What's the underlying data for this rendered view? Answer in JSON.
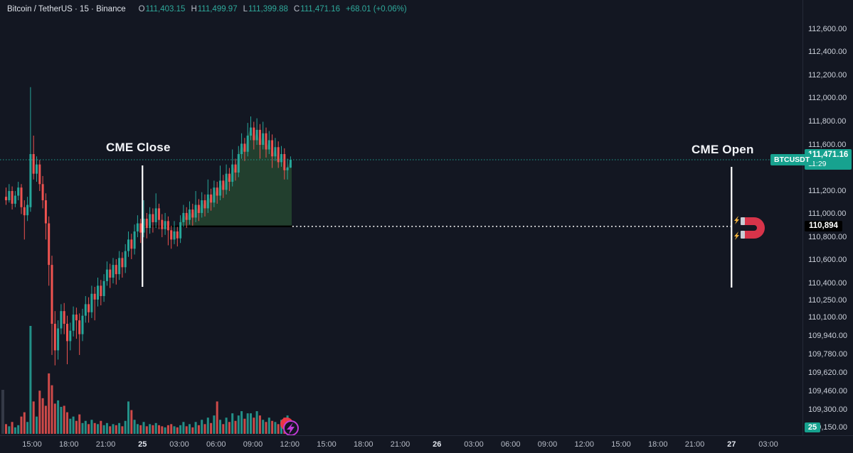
{
  "header": {
    "title": "Bitcoin / TetherUS · 15 · Binance",
    "ohlc_items": [
      {
        "label": "O",
        "value": "111,403.15"
      },
      {
        "label": "H",
        "value": "111,499.97"
      },
      {
        "label": "L",
        "value": "111,399.88"
      },
      {
        "label": "C",
        "value": "111,471.16"
      }
    ],
    "change": "+68.01 (+0.06%)",
    "currency_button": "USDT"
  },
  "annotations": {
    "cme_close": "CME Close",
    "cme_open": "CME Open"
  },
  "badges": {
    "symbol": "BTCUSDT",
    "last_price": "111,471.16",
    "countdown": "11:29",
    "magnet_price": "110,894",
    "overlap": "25"
  },
  "colors": {
    "background": "#131722",
    "up": "#26a69a",
    "down": "#ef5350",
    "accent_teal": "#17a28f",
    "price_line": "#1fa090",
    "magnet_dotted_line": "#ffffff",
    "level_line": "#000000",
    "green_fill": "rgba(76,175,80,0.27)",
    "axis_text": "#ccd1db",
    "marker_purple": "#c13ad6",
    "marker_red": "#f23645",
    "magnet_red": "#d7344a",
    "spark_yellow": "#f5b53f"
  },
  "price_axis": {
    "labels": [
      {
        "text": "112,600.00",
        "value": 112600
      },
      {
        "text": "112,400.00",
        "value": 112400
      },
      {
        "text": "112,200.00",
        "value": 112200
      },
      {
        "text": "112,000.00",
        "value": 112000
      },
      {
        "text": "111,800.00",
        "value": 111800
      },
      {
        "text": "111,600.00",
        "value": 111600
      },
      {
        "text": "111,200.00",
        "value": 111200
      },
      {
        "text": "111,000.00",
        "value": 111000
      },
      {
        "text": "110,800.00",
        "value": 110800
      },
      {
        "text": "110,600.00",
        "value": 110600
      },
      {
        "text": "110,400.00",
        "value": 110400
      },
      {
        "text": "110,250.00",
        "value": 110250
      },
      {
        "text": "110,100.00",
        "value": 110100
      },
      {
        "text": "109,940.00",
        "value": 109940
      },
      {
        "text": "109,780.00",
        "value": 109780
      },
      {
        "text": "109,620.00",
        "value": 109620
      },
      {
        "text": "109,460.00",
        "value": 109460
      },
      {
        "text": "109,300.00",
        "value": 109300
      },
      {
        "text": "109,150.00",
        "value": 109150
      }
    ]
  },
  "time_axis": {
    "labels": [
      {
        "text": "15:00",
        "day": false
      },
      {
        "text": "18:00",
        "day": false
      },
      {
        "text": "21:00",
        "day": false
      },
      {
        "text": "25",
        "day": true
      },
      {
        "text": "03:00",
        "day": false
      },
      {
        "text": "06:00",
        "day": false
      },
      {
        "text": "09:00",
        "day": false
      },
      {
        "text": "12:00",
        "day": false
      },
      {
        "text": "15:00",
        "day": false
      },
      {
        "text": "18:00",
        "day": false
      },
      {
        "text": "21:00",
        "day": false
      },
      {
        "text": "26",
        "day": true
      },
      {
        "text": "03:00",
        "day": false
      },
      {
        "text": "06:00",
        "day": false
      },
      {
        "text": "09:00",
        "day": false
      },
      {
        "text": "12:00",
        "day": false
      },
      {
        "text": "15:00",
        "day": false
      },
      {
        "text": "18:00",
        "day": false
      },
      {
        "text": "21:00",
        "day": false
      },
      {
        "text": "27",
        "day": true
      },
      {
        "text": "03:00",
        "day": false
      }
    ]
  },
  "chart_data": {
    "type": "candlestick",
    "symbol": "BTCUSDT",
    "exchange": "Binance",
    "interval_minutes": 15,
    "last_price": 111471.16,
    "last_change": 68.01,
    "last_change_pct": 0.06,
    "magnet_level": 110894,
    "countdown": "11:29",
    "fill_from_index": 57,
    "cme_close_tick_index": 3,
    "cme_open_tick_index": 19,
    "candles_ohlc": [
      [
        111150,
        111230,
        111080,
        111120
      ],
      [
        111120,
        111260,
        111100,
        111200
      ],
      [
        111200,
        111240,
        111040,
        111090
      ],
      [
        111090,
        111200,
        111060,
        111160
      ],
      [
        111160,
        111280,
        111120,
        111230
      ],
      [
        111230,
        111260,
        111000,
        111060
      ],
      [
        111060,
        111120,
        110780,
        110990
      ],
      [
        110990,
        111150,
        110940,
        111080
      ],
      [
        111060,
        112100,
        111020,
        111520
      ],
      [
        111520,
        111680,
        111300,
        111350
      ],
      [
        111350,
        111500,
        111280,
        111430
      ],
      [
        111430,
        111470,
        111200,
        111260
      ],
      [
        111260,
        111330,
        111050,
        111120
      ],
      [
        111120,
        111180,
        110780,
        110920
      ],
      [
        110920,
        110980,
        110380,
        110560
      ],
      [
        110560,
        110640,
        109780,
        110050
      ],
      [
        110050,
        110160,
        109690,
        109820
      ],
      [
        109820,
        110080,
        109740,
        110010
      ],
      [
        110010,
        110220,
        109960,
        110160
      ],
      [
        110160,
        110230,
        109960,
        110050
      ],
      [
        110050,
        110120,
        109700,
        109900
      ],
      [
        109900,
        110060,
        109820,
        109990
      ],
      [
        109990,
        110200,
        109940,
        110130
      ],
      [
        110130,
        110190,
        109920,
        110080
      ],
      [
        110080,
        110140,
        109780,
        109960
      ],
      [
        109960,
        110180,
        109900,
        110120
      ],
      [
        110120,
        110290,
        110060,
        110220
      ],
      [
        110220,
        110280,
        110060,
        110150
      ],
      [
        110150,
        110380,
        110100,
        110310
      ],
      [
        110310,
        110370,
        110080,
        110260
      ],
      [
        110260,
        110450,
        110200,
        110380
      ],
      [
        110380,
        110430,
        110210,
        110290
      ],
      [
        110290,
        110480,
        110240,
        110420
      ],
      [
        110420,
        110590,
        110380,
        110520
      ],
      [
        110520,
        110570,
        110360,
        110450
      ],
      [
        110450,
        110620,
        110400,
        110560
      ],
      [
        110560,
        110610,
        110390,
        110480
      ],
      [
        110480,
        110680,
        110430,
        110620
      ],
      [
        110620,
        110670,
        110450,
        110540
      ],
      [
        110540,
        110740,
        110490,
        110680
      ],
      [
        110680,
        110850,
        110630,
        110780
      ],
      [
        110780,
        110830,
        110610,
        110700
      ],
      [
        110700,
        110910,
        110650,
        110850
      ],
      [
        110850,
        110990,
        110800,
        110920
      ],
      [
        110920,
        110960,
        110750,
        110840
      ],
      [
        110840,
        111120,
        110800,
        110960
      ],
      [
        110960,
        111010,
        110790,
        110880
      ],
      [
        110880,
        111060,
        110830,
        111000
      ],
      [
        111000,
        111050,
        110840,
        110930
      ],
      [
        110930,
        111180,
        110880,
        111050
      ],
      [
        111050,
        111090,
        110870,
        110950
      ],
      [
        110950,
        111000,
        110800,
        110870
      ],
      [
        110870,
        111010,
        110820,
        110940
      ],
      [
        110940,
        110980,
        110730,
        110860
      ],
      [
        110860,
        110900,
        110700,
        110780
      ],
      [
        110780,
        110940,
        110740,
        110850
      ],
      [
        110850,
        110890,
        110720,
        110790
      ],
      [
        110790,
        110990,
        110750,
        110930
      ],
      [
        110930,
        111080,
        110890,
        111010
      ],
      [
        111010,
        111060,
        110880,
        110950
      ],
      [
        110950,
        111110,
        110910,
        111040
      ],
      [
        111040,
        111090,
        110900,
        110970
      ],
      [
        110970,
        111200,
        110930,
        111080
      ],
      [
        111080,
        111130,
        110940,
        111010
      ],
      [
        111010,
        111190,
        110970,
        111120
      ],
      [
        111120,
        111170,
        110980,
        111050
      ],
      [
        111050,
        111300,
        111010,
        111170
      ],
      [
        111170,
        111220,
        111030,
        111100
      ],
      [
        111100,
        111290,
        111060,
        111230
      ],
      [
        111230,
        111280,
        111090,
        111160
      ],
      [
        111160,
        111420,
        111120,
        111290
      ],
      [
        111290,
        111340,
        111140,
        111210
      ],
      [
        111210,
        111430,
        111170,
        111350
      ],
      [
        111350,
        111400,
        111200,
        111280
      ],
      [
        111280,
        111560,
        111240,
        111430
      ],
      [
        111430,
        111480,
        111290,
        111360
      ],
      [
        111360,
        111590,
        111320,
        111520
      ],
      [
        111520,
        111700,
        111480,
        111610
      ],
      [
        111610,
        111660,
        111460,
        111540
      ],
      [
        111540,
        111790,
        111500,
        111680
      ],
      [
        111680,
        111846,
        111640,
        111750
      ],
      [
        111750,
        111800,
        111560,
        111640
      ],
      [
        111640,
        111830,
        111600,
        111730
      ],
      [
        111730,
        111780,
        111480,
        111600
      ],
      [
        111600,
        111800,
        111560,
        111700
      ],
      [
        111700,
        111750,
        111490,
        111560
      ],
      [
        111560,
        111720,
        111520,
        111640
      ],
      [
        111640,
        111690,
        111400,
        111500
      ],
      [
        111500,
        111660,
        111460,
        111580
      ],
      [
        111580,
        111630,
        111400,
        111450
      ],
      [
        111450,
        111590,
        111410,
        111520
      ],
      [
        111520,
        111570,
        111300,
        111380
      ],
      [
        111380,
        111480,
        111300,
        111405
      ],
      [
        111403.15,
        111499.97,
        111399.88,
        111471.16
      ]
    ],
    "volumes": [
      9,
      7,
      11,
      6,
      8,
      16,
      20,
      11,
      100,
      30,
      16,
      40,
      33,
      26,
      56,
      45,
      28,
      31,
      25,
      26,
      20,
      14,
      16,
      12,
      18,
      10,
      12,
      9,
      13,
      10,
      9,
      12,
      8,
      10,
      7,
      9,
      8,
      10,
      7,
      12,
      30,
      22,
      13,
      9,
      8,
      11,
      7,
      9,
      8,
      10,
      8,
      7,
      6,
      8,
      9,
      7,
      6,
      8,
      11,
      7,
      9,
      6,
      11,
      8,
      13,
      9,
      15,
      10,
      17,
      30,
      13,
      9,
      15,
      11,
      19,
      12,
      17,
      21,
      14,
      19,
      19,
      15,
      21,
      17,
      13,
      11,
      15,
      12,
      11,
      9,
      13,
      15,
      17,
      13
    ]
  }
}
